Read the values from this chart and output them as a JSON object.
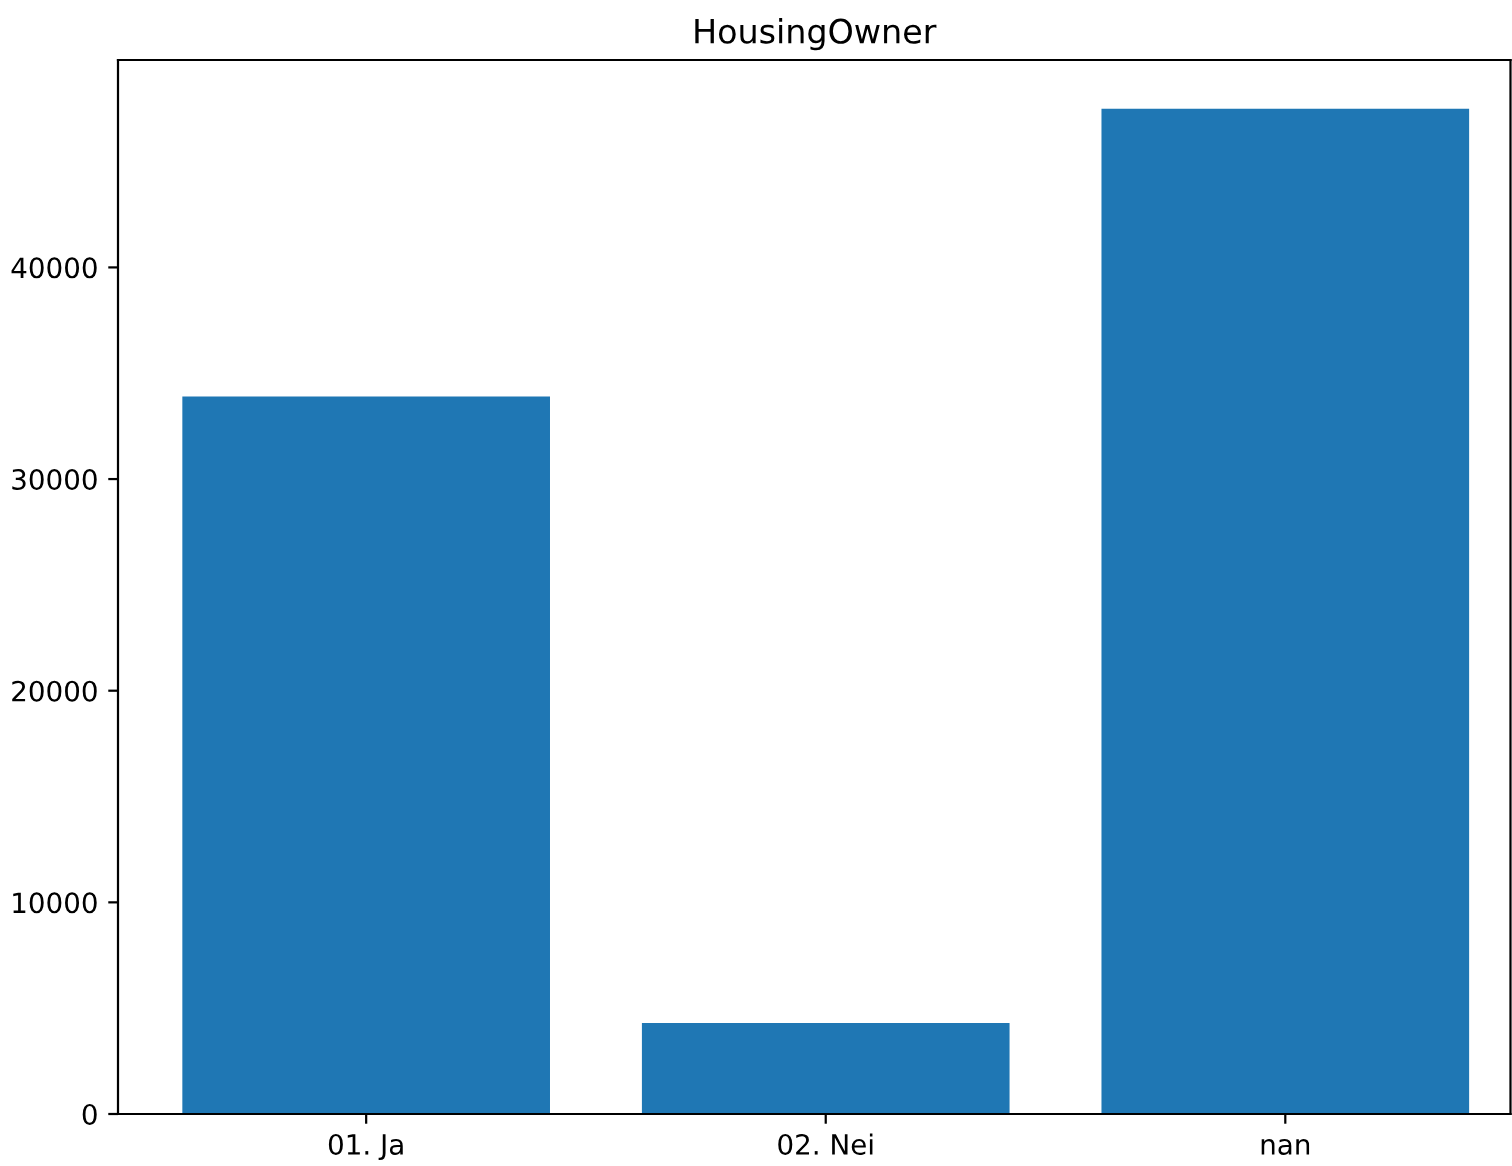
{
  "chart_data": {
    "type": "bar",
    "title": "HousingOwner",
    "categories": [
      "01. Ja",
      "02. Nei",
      "nan"
    ],
    "values": [
      33900,
      4300,
      47500
    ],
    "color": "#1f77b4",
    "ylim": [
      0,
      49800
    ],
    "yticks": [
      0,
      10000,
      20000,
      30000,
      40000
    ],
    "grid": false
  }
}
